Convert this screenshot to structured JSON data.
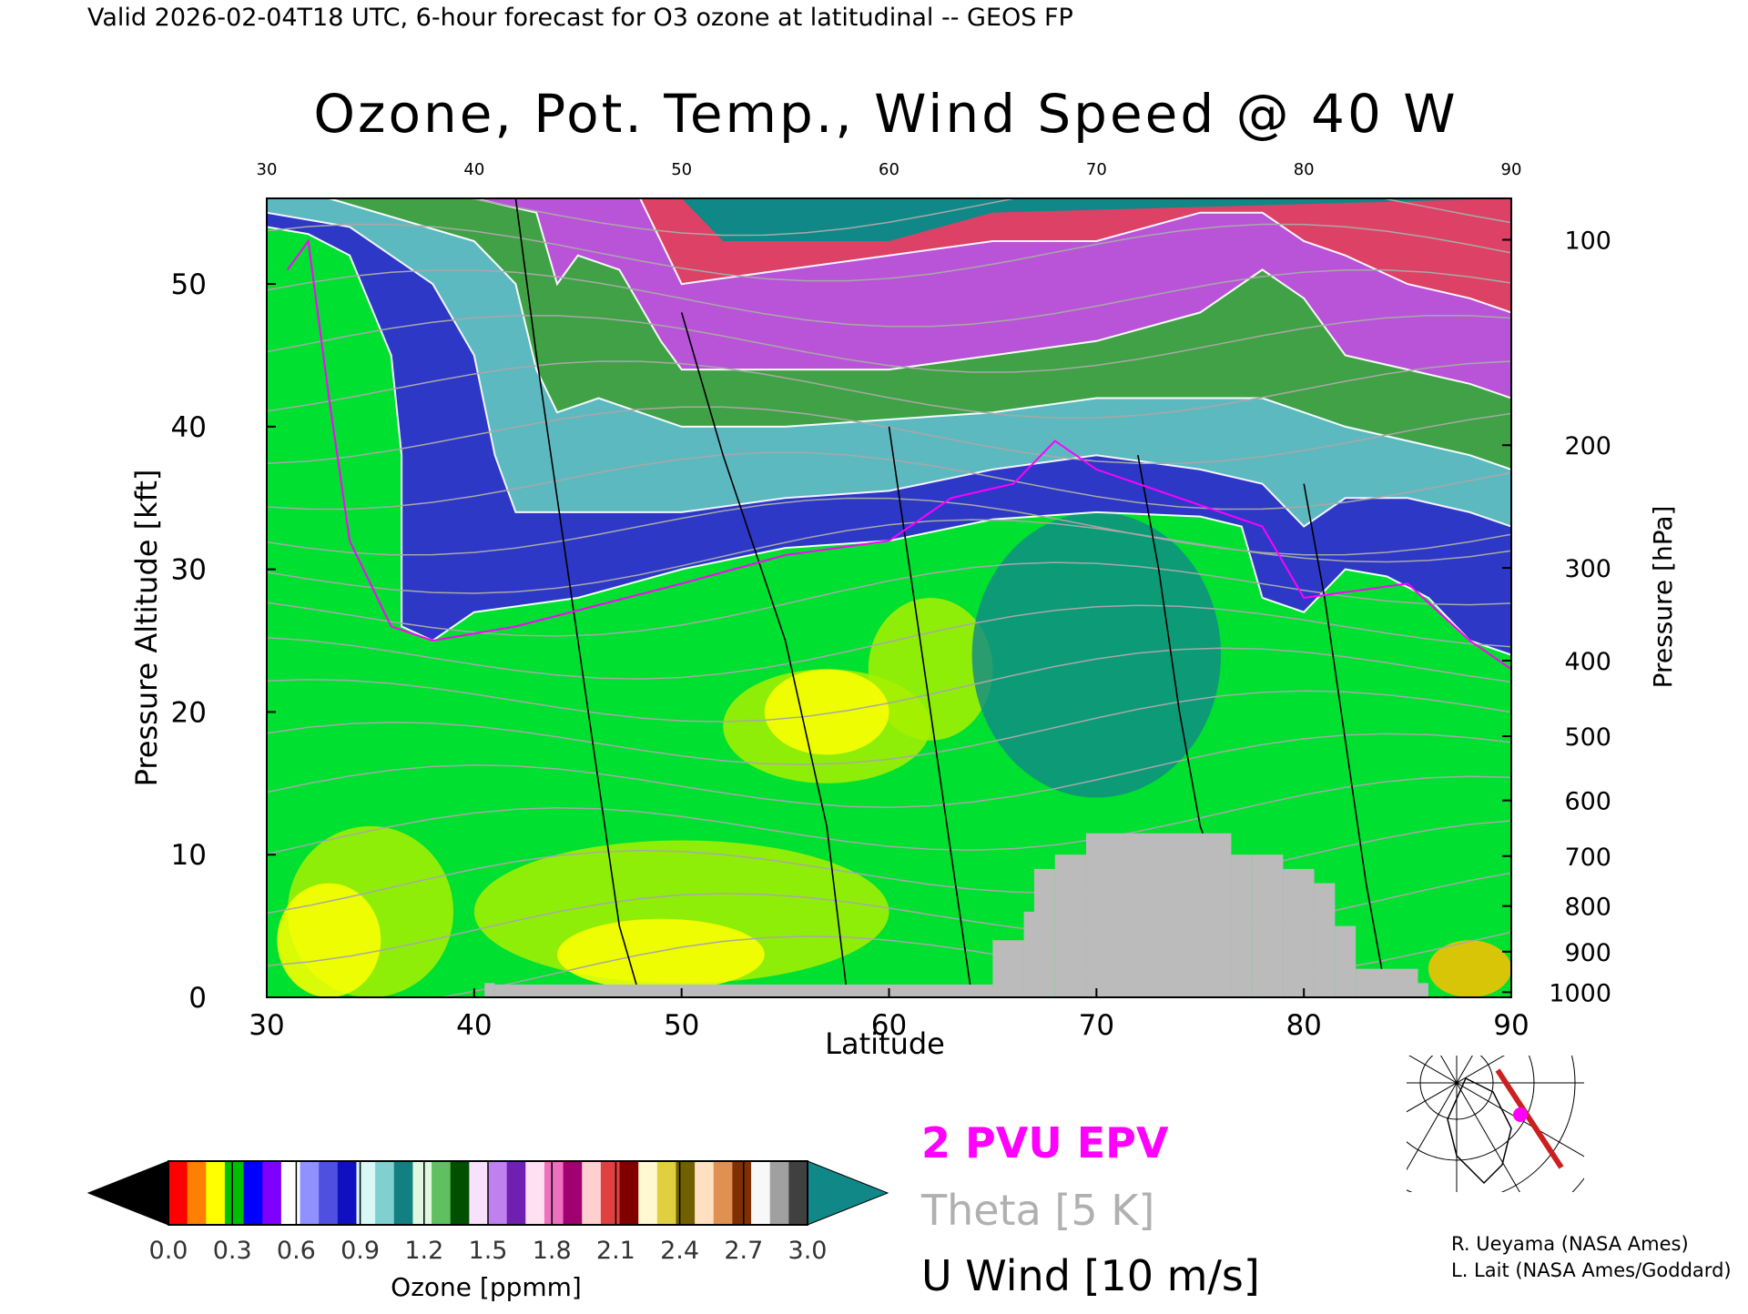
{
  "header": {
    "valid_line": "Valid 2026-02-04T18 UTC, 6-hour forecast for O3 ozone at latitudinal -- GEOS FP"
  },
  "chart_data": {
    "type": "heatmap",
    "title": "Ozone, Pot. Temp., Wind Speed @ 40 W",
    "xlabel": "Latitude",
    "ylabel_left": "Pressure Altitude [kft]",
    "ylabel_right": "Pressure [hPa]",
    "xlim": [
      30,
      90
    ],
    "ylim": [
      0,
      56
    ],
    "x_ticks": [
      "30",
      "40",
      "50",
      "60",
      "70",
      "80",
      "90"
    ],
    "top_x_ticks": [
      "30",
      "40",
      "50",
      "60",
      "70",
      "80",
      "90"
    ],
    "y_ticks": [
      "0",
      "10",
      "20",
      "30",
      "40",
      "50"
    ],
    "pressure_ticks": [
      {
        "label": "1000",
        "kft": 0.36
      },
      {
        "label": "900",
        "kft": 3.2
      },
      {
        "label": "800",
        "kft": 6.4
      },
      {
        "label": "700",
        "kft": 9.9
      },
      {
        "label": "600",
        "kft": 13.8
      },
      {
        "label": "500",
        "kft": 18.3
      },
      {
        "label": "400",
        "kft": 23.6
      },
      {
        "label": "300",
        "kft": 30.1
      },
      {
        "label": "200",
        "kft": 38.7
      },
      {
        "label": "100",
        "kft": 53.1
      }
    ],
    "ozone_boundaries": [
      {
        "label": "0.3 ppmm contour",
        "points": [
          [
            30,
            54
          ],
          [
            32,
            53.5
          ],
          [
            34,
            52
          ],
          [
            36,
            45
          ],
          [
            36.5,
            38
          ],
          [
            36.5,
            26
          ],
          [
            38,
            25
          ],
          [
            40,
            27
          ],
          [
            45,
            28
          ],
          [
            50,
            30
          ],
          [
            55,
            31.5
          ],
          [
            60,
            32
          ],
          [
            65,
            33.5
          ],
          [
            70,
            34
          ],
          [
            75,
            33.7
          ],
          [
            77,
            33
          ],
          [
            78,
            28
          ],
          [
            80,
            27
          ],
          [
            82,
            30
          ],
          [
            84,
            29.5
          ],
          [
            86,
            28
          ],
          [
            88,
            25
          ],
          [
            90,
            24
          ]
        ]
      },
      {
        "label": "0.6 ppmm contour",
        "points": [
          [
            30,
            55
          ],
          [
            34,
            54
          ],
          [
            38,
            50
          ],
          [
            40,
            45
          ],
          [
            41,
            38
          ],
          [
            42,
            34
          ],
          [
            45,
            34
          ],
          [
            50,
            34
          ],
          [
            55,
            35
          ],
          [
            60,
            35.5
          ],
          [
            65,
            37
          ],
          [
            70,
            38
          ],
          [
            75,
            37
          ],
          [
            78,
            36
          ],
          [
            80,
            33
          ],
          [
            82,
            35
          ],
          [
            85,
            35
          ],
          [
            88,
            34
          ],
          [
            90,
            33
          ]
        ]
      },
      {
        "label": "1.2 ppmm contour",
        "points": [
          [
            33,
            56
          ],
          [
            40,
            53
          ],
          [
            42,
            50
          ],
          [
            43,
            44
          ],
          [
            44,
            41
          ],
          [
            46,
            42
          ],
          [
            48,
            41
          ],
          [
            50,
            40
          ],
          [
            55,
            40
          ],
          [
            60,
            40.5
          ],
          [
            65,
            41
          ],
          [
            70,
            42
          ],
          [
            75,
            42
          ],
          [
            78,
            42
          ],
          [
            80,
            41
          ],
          [
            82,
            40
          ],
          [
            85,
            39
          ],
          [
            88,
            38
          ],
          [
            90,
            37
          ]
        ]
      },
      {
        "label": "1.8 ppmm contour",
        "points": [
          [
            40,
            56
          ],
          [
            43,
            55
          ],
          [
            44,
            50
          ],
          [
            45,
            52
          ],
          [
            47,
            51
          ],
          [
            49,
            46
          ],
          [
            50,
            44
          ],
          [
            55,
            44
          ],
          [
            60,
            44
          ],
          [
            65,
            45
          ],
          [
            70,
            46
          ],
          [
            75,
            48
          ],
          [
            78,
            51
          ],
          [
            80,
            49
          ],
          [
            82,
            45
          ],
          [
            85,
            44
          ],
          [
            88,
            43
          ],
          [
            90,
            42
          ]
        ]
      },
      {
        "label": "2.4 ppmm contour",
        "points": [
          [
            48,
            56
          ],
          [
            49,
            53
          ],
          [
            50,
            50
          ],
          [
            55,
            51
          ],
          [
            60,
            52
          ],
          [
            65,
            53
          ],
          [
            70,
            53
          ],
          [
            75,
            55
          ],
          [
            78,
            55
          ],
          [
            80,
            53
          ],
          [
            82,
            52
          ],
          [
            85,
            50
          ],
          [
            88,
            49
          ],
          [
            90,
            48
          ]
        ]
      }
    ],
    "epv_2pvu": [
      [
        31,
        51
      ],
      [
        32,
        53
      ],
      [
        33,
        42
      ],
      [
        34,
        32
      ],
      [
        36,
        26
      ],
      [
        38,
        25
      ],
      [
        42,
        26
      ],
      [
        50,
        29
      ],
      [
        55,
        31
      ],
      [
        60,
        32
      ],
      [
        63,
        35
      ],
      [
        66,
        36
      ],
      [
        68,
        39
      ],
      [
        70,
        37
      ],
      [
        74,
        35
      ],
      [
        78,
        33
      ],
      [
        80,
        28
      ],
      [
        85,
        29
      ],
      [
        88,
        25
      ],
      [
        90,
        23
      ]
    ],
    "terrain_blocks": [
      [
        40.5,
        41,
        0,
        1
      ],
      [
        41,
        65,
        0,
        0.9
      ],
      [
        65,
        66.5,
        0,
        4
      ],
      [
        66.5,
        67,
        0,
        6
      ],
      [
        67,
        68,
        0,
        9
      ],
      [
        68,
        69.5,
        0,
        10
      ],
      [
        69.5,
        76.5,
        0,
        11.5
      ],
      [
        76.5,
        77.5,
        0,
        10
      ],
      [
        77.5,
        79,
        0,
        10
      ],
      [
        79,
        80.5,
        0,
        9
      ],
      [
        80.5,
        81.5,
        0,
        8
      ],
      [
        81.5,
        82.5,
        0,
        5
      ],
      [
        82.5,
        85.5,
        0,
        2
      ],
      [
        85.5,
        86,
        0,
        1
      ]
    ],
    "wind_zero_lines": [
      [
        [
          42,
          56
        ],
        [
          43,
          45
        ],
        [
          44,
          35
        ],
        [
          45,
          25
        ],
        [
          46,
          15
        ],
        [
          47,
          5
        ],
        [
          48,
          0
        ]
      ],
      [
        [
          50,
          48
        ],
        [
          52,
          38
        ],
        [
          55,
          25
        ],
        [
          57,
          12
        ],
        [
          58,
          0
        ]
      ],
      [
        [
          60,
          40
        ],
        [
          61,
          30
        ],
        [
          62,
          20
        ],
        [
          63,
          10
        ],
        [
          64,
          0
        ]
      ],
      [
        [
          72,
          38
        ],
        [
          73,
          30
        ],
        [
          74,
          20
        ],
        [
          75,
          12
        ],
        [
          76,
          8
        ]
      ],
      [
        [
          80,
          36
        ],
        [
          81,
          28
        ],
        [
          82,
          18
        ],
        [
          83,
          8
        ],
        [
          84,
          0
        ]
      ]
    ],
    "colorbar": {
      "label": "Ozone [ppmm]",
      "ticks": [
        "0.0",
        "0.3",
        "0.6",
        "0.9",
        "1.2",
        "1.5",
        "1.8",
        "2.1",
        "2.4",
        "2.7",
        "3.0"
      ],
      "range": [
        0,
        3
      ],
      "band_colors": [
        "#ff0000",
        "#ff8000",
        "#ffff00",
        "#00c000",
        "#0000ff",
        "#8000ff",
        "#ffffff",
        "#9090ff",
        "#5050e0",
        "#1010c0",
        "#d8f8f8",
        "#80d0d0",
        "#108080",
        "#e0f8e0",
        "#60c060",
        "#005000",
        "#f8e0ff",
        "#c080f0",
        "#7020b0",
        "#ffe0f0",
        "#f070c0",
        "#a00070",
        "#ffd0d0",
        "#e04040",
        "#800000",
        "#fff8d0",
        "#e0d040",
        "#706000",
        "#ffe0c0",
        "#e09050",
        "#803000",
        "#f8f8f8",
        "#a0a0a0",
        "#404040"
      ],
      "low_extend": "#000000",
      "high_extend": "#108888"
    },
    "legend": {
      "epv_label": "2 PVU EPV",
      "theta_label": "Theta [5 K]",
      "wind_label": "U Wind [10 m/s]",
      "epv_color": "#ff00ff",
      "theta_color": "#b0b0b0",
      "wind_color": "#000000"
    },
    "grid": false
  },
  "credits": {
    "line1": "R. Ueyama (NASA Ames)",
    "line2": "L. Lait (NASA Ames/Goddard)"
  },
  "colors": {
    "background_fill": "#00e030",
    "low_ozone_fill": "#a8f000",
    "lowest_ozone_fill": "#ffff00",
    "tropo_teal": "#108888",
    "terrain": "#bbbbbb",
    "map_track": "#cc2020",
    "map_marker": "#ff00ff"
  }
}
